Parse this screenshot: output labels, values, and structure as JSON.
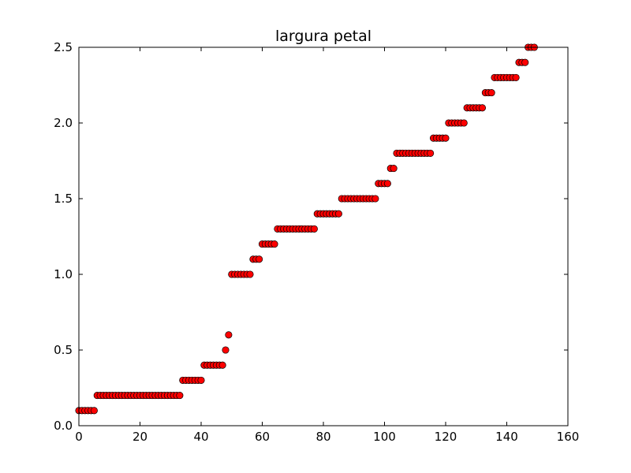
{
  "chart_data": {
    "type": "scatter",
    "title": "largura petal",
    "xlabel": "",
    "ylabel": "",
    "xlim": [
      0,
      160
    ],
    "ylim": [
      0,
      2.5
    ],
    "xticks": [
      0,
      20,
      40,
      60,
      80,
      100,
      120,
      140,
      160
    ],
    "yticks": [
      0.0,
      0.5,
      1.0,
      1.5,
      2.0,
      2.5
    ],
    "xtick_labels": [
      "0",
      "20",
      "40",
      "60",
      "80",
      "100",
      "120",
      "140",
      "160"
    ],
    "ytick_labels": [
      "0.0",
      "0.5",
      "1.0",
      "1.5",
      "2.0",
      "2.5"
    ],
    "grid": false,
    "legend": "none",
    "marker_color": "#ff0000",
    "marker_edge": "#000000",
    "runs": [
      {
        "value": 0.1,
        "count": 6
      },
      {
        "value": 0.2,
        "count": 28
      },
      {
        "value": 0.3,
        "count": 7
      },
      {
        "value": 0.4,
        "count": 7
      },
      {
        "value": 0.5,
        "count": 1
      },
      {
        "value": 0.6,
        "count": 1
      },
      {
        "value": 1.0,
        "count": 7
      },
      {
        "value": 1.1,
        "count": 3
      },
      {
        "value": 1.2,
        "count": 5
      },
      {
        "value": 1.3,
        "count": 13
      },
      {
        "value": 1.4,
        "count": 8
      },
      {
        "value": 1.5,
        "count": 12
      },
      {
        "value": 1.6,
        "count": 4
      },
      {
        "value": 1.7,
        "count": 2
      },
      {
        "value": 1.8,
        "count": 12
      },
      {
        "value": 1.9,
        "count": 5
      },
      {
        "value": 2.0,
        "count": 6
      },
      {
        "value": 2.1,
        "count": 6
      },
      {
        "value": 2.2,
        "count": 3
      },
      {
        "value": 2.3,
        "count": 8
      },
      {
        "value": 2.4,
        "count": 3
      },
      {
        "value": 2.5,
        "count": 3
      }
    ]
  }
}
